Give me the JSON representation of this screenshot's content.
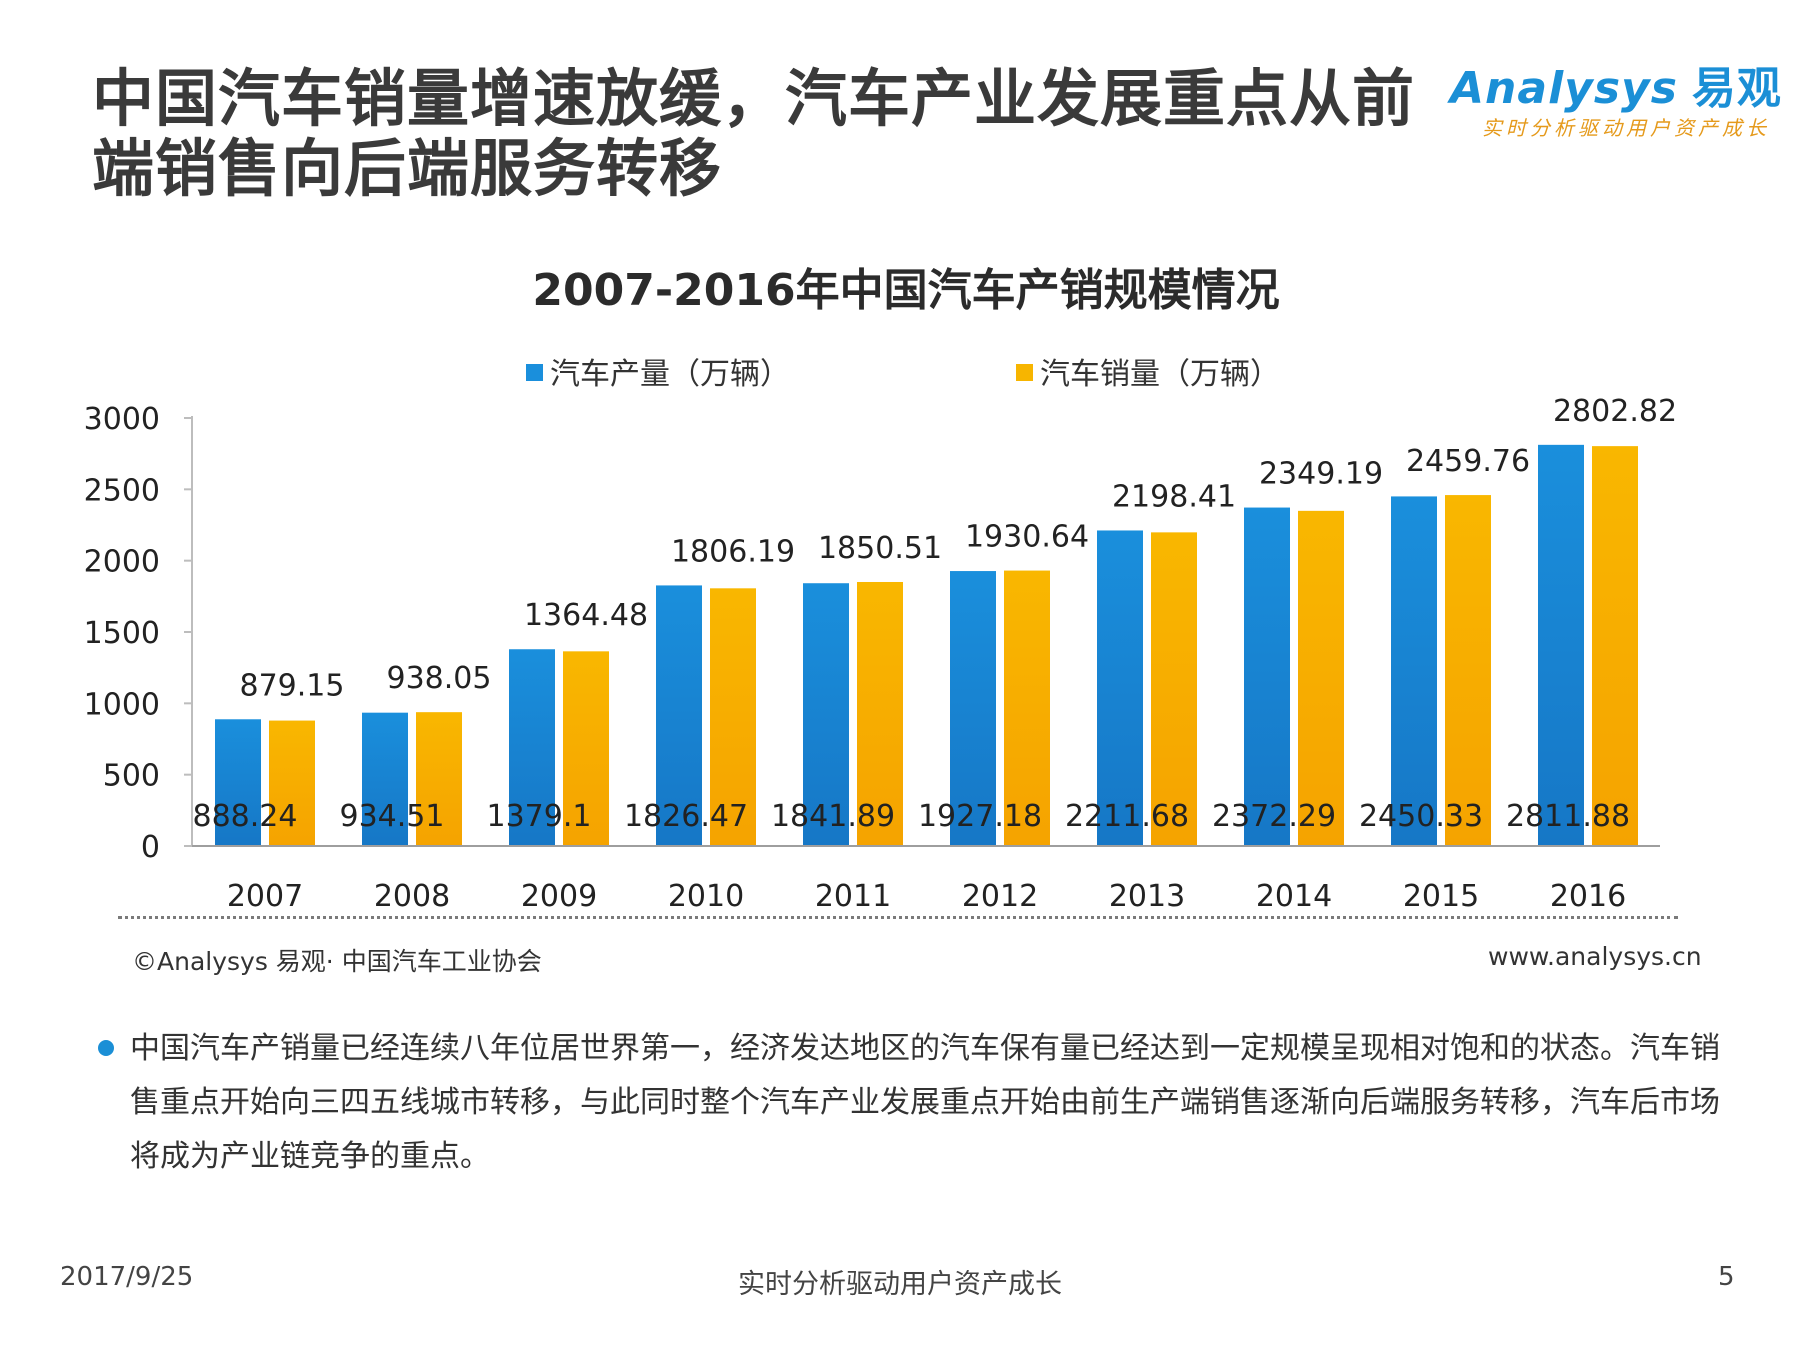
{
  "page": {
    "title": "中国汽车销量增速放缓，汽车产业发展重点从前端销售向后端服务转移"
  },
  "logo": {
    "brand": "Analysys",
    "brand_cn": "易观",
    "tagline": "实时分析驱动用户资产成长"
  },
  "chart_data": {
    "type": "bar",
    "title": "2007-2016年中国汽车产销规模情况",
    "categories": [
      "2007",
      "2008",
      "2009",
      "2010",
      "2011",
      "2012",
      "2013",
      "2014",
      "2015",
      "2016"
    ],
    "series": [
      {
        "name": "汽车产量（万辆）",
        "color": "#1a8fdc",
        "values": [
          888.24,
          934.51,
          1379.1,
          1826.47,
          1841.89,
          1927.18,
          2211.68,
          2372.29,
          2450.33,
          2811.88
        ]
      },
      {
        "name": "汽车销量（万辆）",
        "color": "#f7b500",
        "values": [
          879.15,
          938.05,
          1364.48,
          1806.19,
          1850.51,
          1930.64,
          2198.41,
          2349.19,
          2459.76,
          2802.82
        ]
      }
    ],
    "production_labels": [
      "888.24",
      "934.51",
      "1379.1",
      "1826.47",
      "1841.89",
      "1927.18",
      "2211.68",
      "2372.29",
      "2450.33",
      "2811.88"
    ],
    "sales_labels": [
      "879.15",
      "938.05",
      "1364.48",
      "1806.19",
      "1850.51",
      "1930.64",
      "2198.41",
      "2349.19",
      "2459.76",
      "2802.82"
    ],
    "yticks": [
      "0",
      "500",
      "1000",
      "1500",
      "2000",
      "2500",
      "3000"
    ],
    "ylim": [
      0,
      3000
    ],
    "xlabel": "",
    "ylabel": "",
    "legend": "top-center",
    "grid": false
  },
  "source": "©Analysys 易观· 中国汽车工业协会",
  "website": "www.analysys.cn",
  "summary": "中国汽车产销量已经连续八年位居世界第一，经济发达地区的汽车保有量已经达到一定规模呈现相对饱和的状态。汽车销售重点开始向三四五线城市转移，与此同时整个汽车产业发展重点开始由前生产端销售逐渐向后端服务转移，汽车后市场将成为产业链竞争的重点。",
  "footer": {
    "date": "2017/9/25",
    "slogan": "实时分析驱动用户资产成长",
    "page_number": "5"
  }
}
